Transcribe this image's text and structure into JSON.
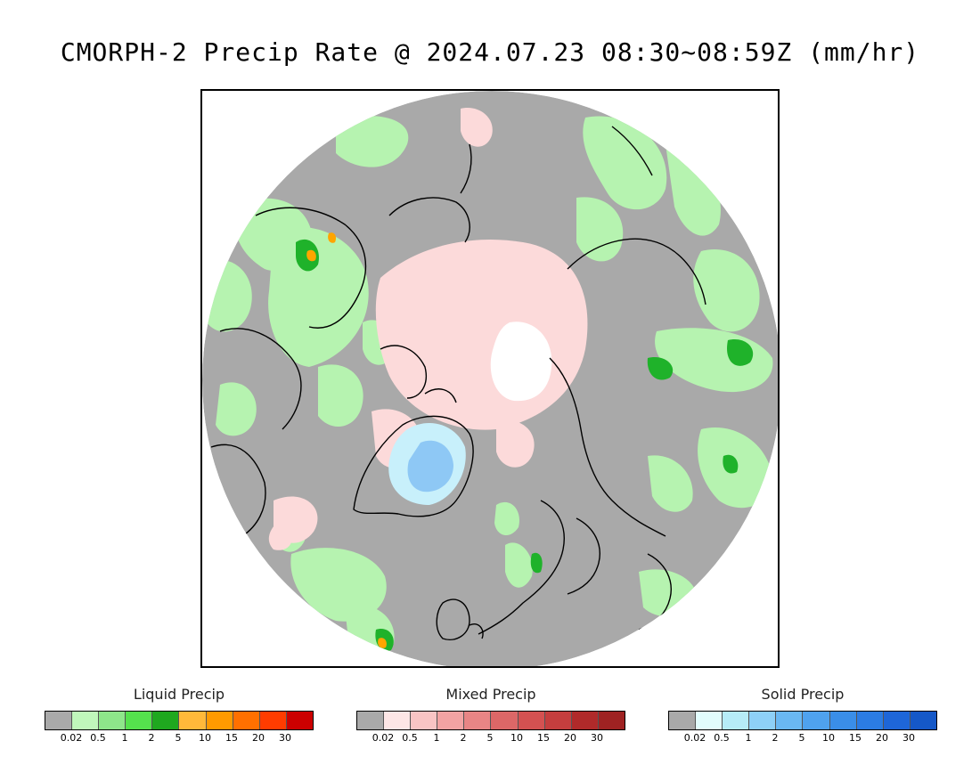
{
  "title": "CMORPH-2 Precip Rate @ 2024.07.23 08:30~08:59Z (mm/hr)",
  "map": {
    "projection": "north-polar-stereographic",
    "colors": {
      "no_precip": "#a9a9a9",
      "liquid_light": "#b6f3b0",
      "liquid_moderate": "#8ee68a",
      "liquid_heavy": "#1fb22a",
      "liquid_intense": "#ffa500",
      "mixed_light": "#fcdada",
      "solid_light": "#c8f0fb",
      "solid_moderate": "#8ec8f5",
      "no_data": "#ffffff",
      "coastline": "#000000"
    }
  },
  "legends": [
    {
      "title": "Liquid Precip",
      "colors": [
        "#a9a9a9",
        "#c0f7bb",
        "#8ee68a",
        "#55e24d",
        "#1fa81f",
        "#ffb93a",
        "#ff9a00",
        "#ff7000",
        "#ff3c00",
        "#cc0000"
      ],
      "ticks": [
        "0.02",
        "0.5",
        "1",
        "2",
        "5",
        "10",
        "15",
        "20",
        "30"
      ]
    },
    {
      "title": "Mixed Precip",
      "colors": [
        "#a9a9a9",
        "#fde6e6",
        "#f9c4c4",
        "#f2a3a3",
        "#e88585",
        "#dc6767",
        "#d45151",
        "#c53e3e",
        "#b02a2a",
        "#9f2222"
      ],
      "ticks": [
        "0.02",
        "0.5",
        "1",
        "2",
        "5",
        "10",
        "15",
        "20",
        "30"
      ]
    },
    {
      "title": "Solid Precip",
      "colors": [
        "#a9a9a9",
        "#e2fdfd",
        "#b6ecf7",
        "#8ed0f7",
        "#6ab8f2",
        "#4fa2ee",
        "#3a8ee8",
        "#2b7ce4",
        "#1e66d8",
        "#1558c8"
      ],
      "ticks": [
        "0.02",
        "0.5",
        "1",
        "2",
        "5",
        "10",
        "15",
        "20",
        "30"
      ]
    }
  ]
}
